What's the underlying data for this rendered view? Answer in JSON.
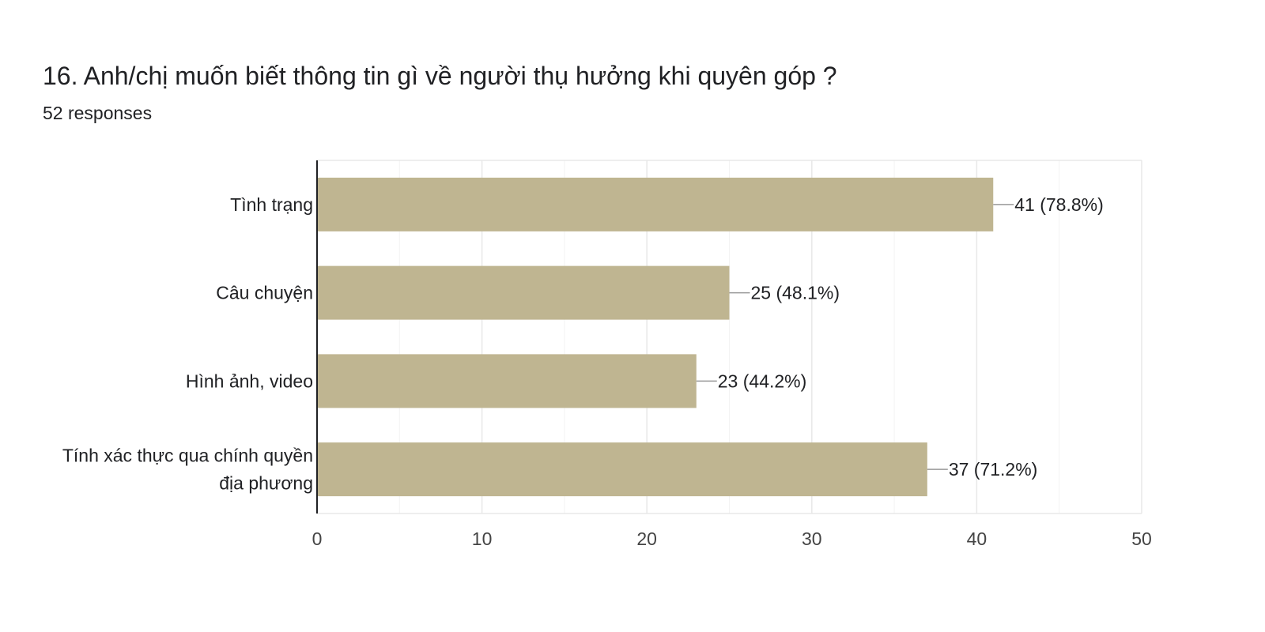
{
  "question": {
    "title": "16. Anh/chị muốn biết thông tin gì về người thụ hưởng khi quyên góp ?",
    "responses": "52 responses"
  },
  "colors": {
    "bar": "#bfb591",
    "grid": "#e8e8e8",
    "axis": "#202124",
    "label_line": "#999999",
    "text": "#202124"
  },
  "chart_data": {
    "type": "bar",
    "orientation": "horizontal",
    "categories": [
      [
        "Tình trạng"
      ],
      [
        "Câu chuyện"
      ],
      [
        "Hình ảnh, video"
      ],
      [
        "Tính xác thực qua chính quyền",
        "địa phương"
      ]
    ],
    "values": [
      41,
      25,
      23,
      37
    ],
    "data_labels": [
      "41 (78.8%)",
      "25 (48.1%)",
      "23 (44.2%)",
      "37 (71.2%)"
    ],
    "xlim": [
      0,
      50
    ],
    "xticks": [
      0,
      10,
      20,
      30,
      40,
      50
    ],
    "grid": true,
    "legend": "none"
  }
}
